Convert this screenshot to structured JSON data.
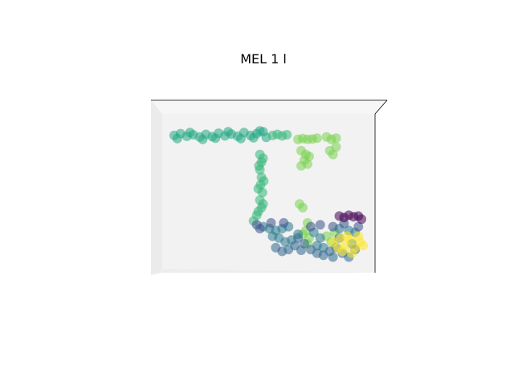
{
  "chart_data": {
    "type": "scatter",
    "projection": "3d",
    "title": "MEL 1 l",
    "xlabel": "",
    "ylabel": "",
    "zlabel": "",
    "grid": false,
    "axis_ticks": false,
    "colormap": "viridis",
    "marker_alpha": 0.55,
    "pane_color": "#f2f2f2",
    "clusters": [
      {
        "label": "",
        "color": "#22a884",
        "points": [
          [
            -3.0,
            3.0
          ],
          [
            -2.8,
            3.05
          ],
          [
            -2.6,
            2.98
          ],
          [
            -2.4,
            3.02
          ],
          [
            -2.2,
            2.96
          ],
          [
            -2.0,
            3.03
          ],
          [
            -1.8,
            2.97
          ],
          [
            -1.6,
            3.06
          ],
          [
            -1.4,
            2.99
          ],
          [
            -1.2,
            3.04
          ],
          [
            -1.0,
            2.98
          ],
          [
            -0.8,
            3.08
          ],
          [
            -0.6,
            3.0
          ],
          [
            -0.4,
            3.05
          ],
          [
            -0.2,
            3.1
          ],
          [
            -0.1,
            2.95
          ],
          [
            -2.9,
            2.92
          ],
          [
            -2.5,
            3.08
          ],
          [
            -2.1,
            2.9
          ],
          [
            -1.7,
            2.93
          ],
          [
            -1.3,
            3.1
          ],
          [
            -0.9,
            2.92
          ],
          [
            -0.5,
            2.94
          ],
          [
            -0.3,
            3.12
          ]
        ]
      },
      {
        "label": "",
        "color": "#35b779",
        "points": [
          [
            0.1,
            3.0
          ],
          [
            0.25,
            3.03
          ],
          [
            0.4,
            2.99
          ],
          [
            0.55,
            3.02
          ],
          [
            -0.3,
            2.5
          ],
          [
            -0.25,
            2.3
          ],
          [
            -0.3,
            2.1
          ],
          [
            -0.25,
            1.9
          ],
          [
            -0.28,
            1.7
          ],
          [
            -0.22,
            1.5
          ],
          [
            -0.3,
            1.3
          ],
          [
            -0.25,
            1.1
          ],
          [
            -0.35,
            1.0
          ],
          [
            -0.2,
            1.2
          ],
          [
            -0.35,
            1.6
          ],
          [
            -0.18,
            1.8
          ],
          [
            -0.33,
            2.2
          ],
          [
            -0.2,
            2.4
          ],
          [
            -0.4,
            0.9
          ],
          [
            -0.5,
            0.75
          ]
        ]
      },
      {
        "label": "",
        "color": "#7ad151",
        "points": [
          [
            0.9,
            2.9
          ],
          [
            1.05,
            2.92
          ],
          [
            1.2,
            2.9
          ],
          [
            1.35,
            2.91
          ],
          [
            1.5,
            2.93
          ],
          [
            1.8,
            2.96
          ],
          [
            1.95,
            2.9
          ],
          [
            2.1,
            2.93
          ],
          [
            1.0,
            2.6
          ],
          [
            1.15,
            2.5
          ],
          [
            1.1,
            2.35
          ],
          [
            1.25,
            2.45
          ],
          [
            1.0,
            2.2
          ],
          [
            1.2,
            2.25
          ],
          [
            1.9,
            2.6
          ],
          [
            2.0,
            2.5
          ],
          [
            2.1,
            2.7
          ],
          [
            0.95,
            1.2
          ],
          [
            1.05,
            1.1
          ],
          [
            1.2,
            0.7
          ],
          [
            1.15,
            0.5
          ],
          [
            1.25,
            0.3
          ],
          [
            1.05,
            0.4
          ],
          [
            1.2,
            0.15
          ],
          [
            1.8,
            0.35
          ],
          [
            1.95,
            0.2
          ],
          [
            2.05,
            0.45
          ]
        ]
      },
      {
        "label": "",
        "color": "#2a788e",
        "points": [
          [
            -0.2,
            0.6
          ],
          [
            0.0,
            0.55
          ],
          [
            0.2,
            0.5
          ],
          [
            0.4,
            0.55
          ],
          [
            0.6,
            0.6
          ],
          [
            0.3,
            0.3
          ],
          [
            0.5,
            0.2
          ],
          [
            0.1,
            0.35
          ],
          [
            0.7,
            0.25
          ],
          [
            0.9,
            0.4
          ],
          [
            1.4,
            0.45
          ],
          [
            1.6,
            0.3
          ],
          [
            1.5,
            0.1
          ],
          [
            1.7,
            0.05
          ],
          [
            2.2,
            0.55
          ],
          [
            2.5,
            0.5
          ],
          [
            2.7,
            0.45
          ],
          [
            2.6,
            0.15
          ]
        ]
      },
      {
        "label": "",
        "color": "#31688e",
        "points": [
          [
            0.2,
            0.05
          ],
          [
            0.4,
            -0.05
          ],
          [
            0.6,
            0.0
          ],
          [
            0.8,
            0.1
          ],
          [
            1.0,
            -0.02
          ],
          [
            1.3,
            0.0
          ],
          [
            1.5,
            -0.1
          ],
          [
            1.7,
            -0.15
          ],
          [
            1.9,
            -0.05
          ],
          [
            2.1,
            0.05
          ],
          [
            2.3,
            -0.1
          ],
          [
            2.5,
            -0.2
          ],
          [
            2.7,
            0.0
          ],
          [
            2.2,
            0.3
          ],
          [
            0.9,
            0.3
          ],
          [
            1.1,
            0.15
          ],
          [
            2.0,
            -0.2
          ]
        ]
      },
      {
        "label": "",
        "color": "#3b528b",
        "points": [
          [
            -0.4,
            0.65
          ],
          [
            -0.3,
            0.55
          ],
          [
            0.05,
            0.7
          ],
          [
            0.45,
            0.7
          ],
          [
            1.3,
            0.6
          ],
          [
            1.6,
            0.65
          ],
          [
            2.0,
            0.6
          ],
          [
            2.35,
            0.68
          ],
          [
            2.8,
            0.6
          ]
        ]
      },
      {
        "label": "",
        "color": "#440154",
        "points": [
          [
            2.2,
            0.88
          ],
          [
            2.35,
            0.84
          ],
          [
            2.5,
            0.9
          ],
          [
            2.65,
            0.86
          ],
          [
            2.8,
            0.88
          ],
          [
            2.9,
            0.8
          ]
        ]
      },
      {
        "label": "",
        "color": "#fde725",
        "points": [
          [
            2.0,
            0.2
          ],
          [
            2.15,
            0.05
          ],
          [
            2.25,
            0.3
          ],
          [
            2.4,
            0.1
          ],
          [
            2.55,
            0.25
          ],
          [
            2.7,
            0.05
          ],
          [
            2.85,
            0.2
          ],
          [
            2.95,
            0.1
          ],
          [
            2.3,
            -0.05
          ],
          [
            2.6,
            -0.1
          ],
          [
            2.8,
            0.35
          ],
          [
            2.45,
            0.35
          ]
        ]
      }
    ],
    "xlim": [
      -3.3,
      3.2
    ],
    "ylim": [
      -0.4,
      3.4
    ]
  }
}
